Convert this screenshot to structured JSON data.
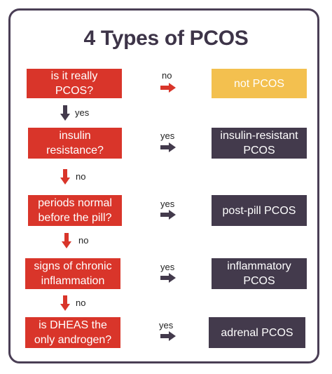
{
  "title": "4 Types of PCOS",
  "colors": {
    "question": "#d9352a",
    "result": "#433a4c",
    "highlight": "#f3c04f",
    "frame": "#4a3e55"
  },
  "rows": [
    {
      "question": "is it really PCOS?",
      "side_label": "no",
      "result": "not PCOS",
      "result_style": "highlight",
      "down_label": "yes"
    },
    {
      "question": "insulin resistance?",
      "side_label": "yes",
      "result": "insulin-resistant PCOS",
      "result_style": "dark",
      "down_label": "no"
    },
    {
      "question": "periods normal before the pill?",
      "side_label": "yes",
      "result": "post-pill PCOS",
      "result_style": "dark",
      "down_label": "no"
    },
    {
      "question": "signs of chronic inflammation",
      "side_label": "yes",
      "result": "inflammatory PCOS",
      "result_style": "dark",
      "down_label": "no"
    },
    {
      "question": "is DHEAS the only androgen?",
      "side_label": "yes",
      "result": "adrenal PCOS",
      "result_style": "dark"
    }
  ]
}
